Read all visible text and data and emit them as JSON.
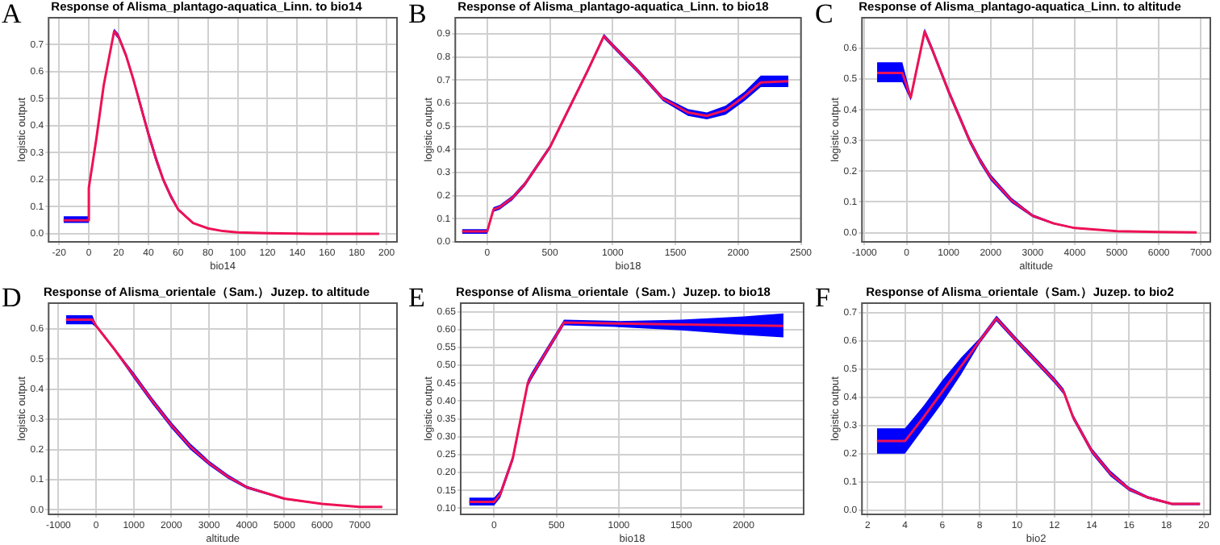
{
  "chart_data": [
    {
      "type": "line",
      "title": "Response of Alisma_plantago-aquatica_Linn. to bio14",
      "xlabel": "bio14",
      "ylabel": "logistic output",
      "annotations": [
        "A"
      ],
      "grid": true,
      "xlim": [
        -27,
        207
      ],
      "xticks": [
        -20,
        0,
        20,
        40,
        60,
        80,
        100,
        120,
        140,
        160,
        180,
        200
      ],
      "ylim": [
        -0.03,
        0.8
      ],
      "yticks": [
        {
          "value": 0,
          "label": "0.0"
        },
        0.1,
        0.2,
        0.3,
        0.4,
        0.5,
        0.6,
        0.7
      ],
      "series": [
        {
          "color": "#ee1155",
          "x": [
            -17,
            0,
            0,
            5,
            10,
            17,
            20,
            25,
            30,
            35,
            40,
            45,
            50,
            55,
            60,
            70,
            80,
            90,
            100,
            120,
            150,
            195
          ],
          "values": [
            0.05,
            0.05,
            0.17,
            0.35,
            0.55,
            0.75,
            0.73,
            0.66,
            0.57,
            0.47,
            0.37,
            0.28,
            0.2,
            0.14,
            0.09,
            0.04,
            0.02,
            0.01,
            0.005,
            0.002,
            0,
            0
          ],
          "lower": [
            0.04,
            0.04,
            0.16,
            0.34,
            0.54,
            0.74,
            0.72,
            0.65,
            0.56,
            0.455,
            0.355,
            0.265,
            0.19,
            0.13,
            0.085,
            0.037,
            0.018,
            0.009,
            0.004,
            0.001,
            0,
            0
          ],
          "upper": [
            0.065,
            0.065,
            0.18,
            0.36,
            0.56,
            0.76,
            0.74,
            0.67,
            0.58,
            0.485,
            0.385,
            0.295,
            0.21,
            0.15,
            0.095,
            0.043,
            0.022,
            0.011,
            0.006,
            0.003,
            0.001,
            0.001
          ]
        }
      ]
    },
    {
      "type": "line",
      "title": "Response of Alisma_plantago-aquatica_Linn. to bio18",
      "xlabel": "bio18",
      "ylabel": "logistic output",
      "annotations": [
        "B"
      ],
      "grid": true,
      "xlim": [
        -254,
        2500
      ],
      "xticks": [
        0,
        500,
        1000,
        1500,
        2000,
        2500
      ],
      "ylim": [
        0,
        0.97
      ],
      "yticks": [
        {
          "value": 0,
          "label": "0.0"
        },
        0.1,
        0.2,
        0.3,
        0.4,
        0.5,
        0.6,
        0.7,
        0.8,
        0.9
      ],
      "series": [
        {
          "color": "#ee1155",
          "x": [
            -200,
            0,
            50,
            100,
            200,
            300,
            400,
            500,
            600,
            700,
            800,
            930,
            1000,
            1200,
            1400,
            1600,
            1750,
            1900,
            2050,
            2180,
            2400
          ],
          "values": [
            0.045,
            0.045,
            0.14,
            0.15,
            0.19,
            0.25,
            0.33,
            0.41,
            0.52,
            0.63,
            0.74,
            0.89,
            0.85,
            0.74,
            0.62,
            0.56,
            0.545,
            0.57,
            0.63,
            0.69,
            0.695
          ],
          "lower": [
            0.035,
            0.035,
            0.13,
            0.14,
            0.18,
            0.24,
            0.32,
            0.4,
            0.51,
            0.62,
            0.73,
            0.88,
            0.84,
            0.73,
            0.61,
            0.545,
            0.53,
            0.55,
            0.61,
            0.67,
            0.67
          ],
          "upper": [
            0.055,
            0.055,
            0.15,
            0.16,
            0.2,
            0.26,
            0.34,
            0.42,
            0.53,
            0.64,
            0.75,
            0.9,
            0.86,
            0.75,
            0.63,
            0.575,
            0.56,
            0.59,
            0.65,
            0.72,
            0.72
          ]
        }
      ]
    },
    {
      "type": "line",
      "title": "Response of Alisma_plantago-aquatica_Linn. to altitude",
      "xlabel": "altitude",
      "ylabel": "logistic output",
      "annotations": [
        "C"
      ],
      "grid": true,
      "xlim": [
        -1060,
        7225
      ],
      "xticks": [
        -1000,
        0,
        1000,
        2000,
        3000,
        4000,
        5000,
        6000,
        7000
      ],
      "ylim": [
        -0.03,
        0.7
      ],
      "yticks": [
        {
          "value": 0,
          "label": "0.0"
        },
        0.1,
        0.2,
        0.3,
        0.4,
        0.5,
        0.6
      ],
      "series": [
        {
          "color": "#ee1155",
          "x": [
            -700,
            -100,
            100,
            430,
            600,
            800,
            1000,
            1250,
            1500,
            1750,
            2000,
            2500,
            3000,
            3500,
            4000,
            5000,
            6000,
            6900
          ],
          "values": [
            0.52,
            0.52,
            0.44,
            0.655,
            0.6,
            0.53,
            0.46,
            0.38,
            0.3,
            0.235,
            0.18,
            0.105,
            0.055,
            0.03,
            0.015,
            0.005,
            0.002,
            0.001
          ],
          "lower": [
            0.49,
            0.49,
            0.43,
            0.645,
            0.59,
            0.52,
            0.45,
            0.37,
            0.29,
            0.225,
            0.17,
            0.097,
            0.05,
            0.027,
            0.013,
            0.004,
            0.001,
            0
          ],
          "upper": [
            0.555,
            0.555,
            0.45,
            0.665,
            0.61,
            0.54,
            0.47,
            0.39,
            0.31,
            0.245,
            0.19,
            0.113,
            0.06,
            0.033,
            0.017,
            0.006,
            0.003,
            0.002
          ]
        }
      ]
    },
    {
      "type": "line",
      "title": "Response of Alisma_orientale（Sam.）Juzep. to altitude",
      "xlabel": "altitude",
      "ylabel": "logistic output",
      "annotations": [
        "D"
      ],
      "grid": true,
      "xlim": [
        -1260,
        7990
      ],
      "xticks": [
        -1000,
        0,
        1000,
        2000,
        3000,
        4000,
        5000,
        6000,
        7000
      ],
      "ylim": [
        -0.015,
        0.685
      ],
      "yticks": [
        {
          "value": 0,
          "label": "0.0"
        },
        0.1,
        0.2,
        0.3,
        0.4,
        0.5,
        0.6
      ],
      "series": [
        {
          "color": "#ee1155",
          "x": [
            -800,
            -100,
            0,
            500,
            1000,
            1500,
            2000,
            2500,
            3000,
            3500,
            4000,
            5000,
            6000,
            7000,
            7600
          ],
          "values": [
            0.63,
            0.63,
            0.61,
            0.53,
            0.445,
            0.36,
            0.28,
            0.21,
            0.155,
            0.11,
            0.075,
            0.037,
            0.02,
            0.01,
            0.01
          ],
          "lower": [
            0.615,
            0.615,
            0.605,
            0.525,
            0.435,
            0.35,
            0.27,
            0.2,
            0.147,
            0.103,
            0.07,
            0.034,
            0.018,
            0.009,
            0.009
          ],
          "upper": [
            0.645,
            0.645,
            0.615,
            0.535,
            0.455,
            0.37,
            0.29,
            0.22,
            0.163,
            0.117,
            0.08,
            0.04,
            0.022,
            0.011,
            0.011
          ]
        }
      ]
    },
    {
      "type": "line",
      "title": "Response of Alisma_orientale（Sam.）Juzep. to bio18",
      "xlabel": "bio18",
      "ylabel": "logistic output",
      "annotations": [
        "E"
      ],
      "grid": true,
      "xlim": [
        -268,
        2482
      ],
      "xticks": [
        0,
        500,
        1000,
        1500,
        2000
      ],
      "ylim": [
        0.083,
        0.674
      ],
      "yticks": [
        {
          "value": 0.1,
          "label": "0.10"
        },
        {
          "value": 0.15,
          "label": "0.15"
        },
        {
          "value": 0.2,
          "label": "0.20"
        },
        {
          "value": 0.25,
          "label": "0.25"
        },
        {
          "value": 0.3,
          "label": "0.30"
        },
        {
          "value": 0.35,
          "label": "0.35"
        },
        {
          "value": 0.4,
          "label": "0.40"
        },
        {
          "value": 0.45,
          "label": "0.45"
        },
        {
          "value": 0.5,
          "label": "0.50"
        },
        {
          "value": 0.55,
          "label": "0.55"
        },
        {
          "value": 0.6,
          "label": "0.60"
        },
        {
          "value": 0.65,
          "label": "0.65"
        }
      ],
      "series": [
        {
          "color": "#ee1155",
          "x": [
            -200,
            0,
            50,
            150,
            270,
            300,
            560,
            1000,
            1500,
            2000,
            2320
          ],
          "values": [
            0.118,
            0.118,
            0.14,
            0.24,
            0.45,
            0.47,
            0.62,
            0.617,
            0.614,
            0.612,
            0.61
          ],
          "lower": [
            0.108,
            0.108,
            0.13,
            0.23,
            0.44,
            0.46,
            0.612,
            0.607,
            0.598,
            0.585,
            0.578
          ],
          "upper": [
            0.13,
            0.13,
            0.15,
            0.25,
            0.46,
            0.48,
            0.628,
            0.624,
            0.628,
            0.637,
            0.645
          ]
        }
      ]
    },
    {
      "type": "line",
      "title": "Response of Alisma_orientale（Sam.）Juzep. to bio2",
      "xlabel": "bio2",
      "ylabel": "logistic output",
      "annotations": [
        "F"
      ],
      "grid": true,
      "xlim": [
        1.7,
        20.35
      ],
      "xticks": [
        2,
        4,
        6,
        8,
        10,
        12,
        14,
        16,
        18,
        20
      ],
      "ylim": [
        -0.015,
        0.734
      ],
      "yticks": [
        {
          "value": 0,
          "label": "0.0"
        },
        0.1,
        0.2,
        0.3,
        0.4,
        0.5,
        0.6,
        0.7
      ],
      "series": [
        {
          "color": "#ee1155",
          "x": [
            2.5,
            4,
            5,
            6,
            7,
            8,
            8.9,
            10,
            11,
            12,
            12.5,
            13,
            14,
            15,
            16,
            17,
            18.3,
            19.8
          ],
          "values": [
            0.245,
            0.245,
            0.33,
            0.42,
            0.51,
            0.6,
            0.68,
            0.6,
            0.53,
            0.46,
            0.42,
            0.33,
            0.21,
            0.13,
            0.075,
            0.045,
            0.022,
            0.022
          ],
          "lower": [
            0.2,
            0.2,
            0.29,
            0.38,
            0.48,
            0.59,
            0.67,
            0.59,
            0.52,
            0.45,
            0.41,
            0.32,
            0.2,
            0.12,
            0.068,
            0.04,
            0.018,
            0.018
          ],
          "upper": [
            0.29,
            0.29,
            0.37,
            0.46,
            0.54,
            0.61,
            0.69,
            0.61,
            0.54,
            0.47,
            0.43,
            0.34,
            0.22,
            0.14,
            0.082,
            0.05,
            0.026,
            0.026
          ]
        }
      ]
    }
  ]
}
